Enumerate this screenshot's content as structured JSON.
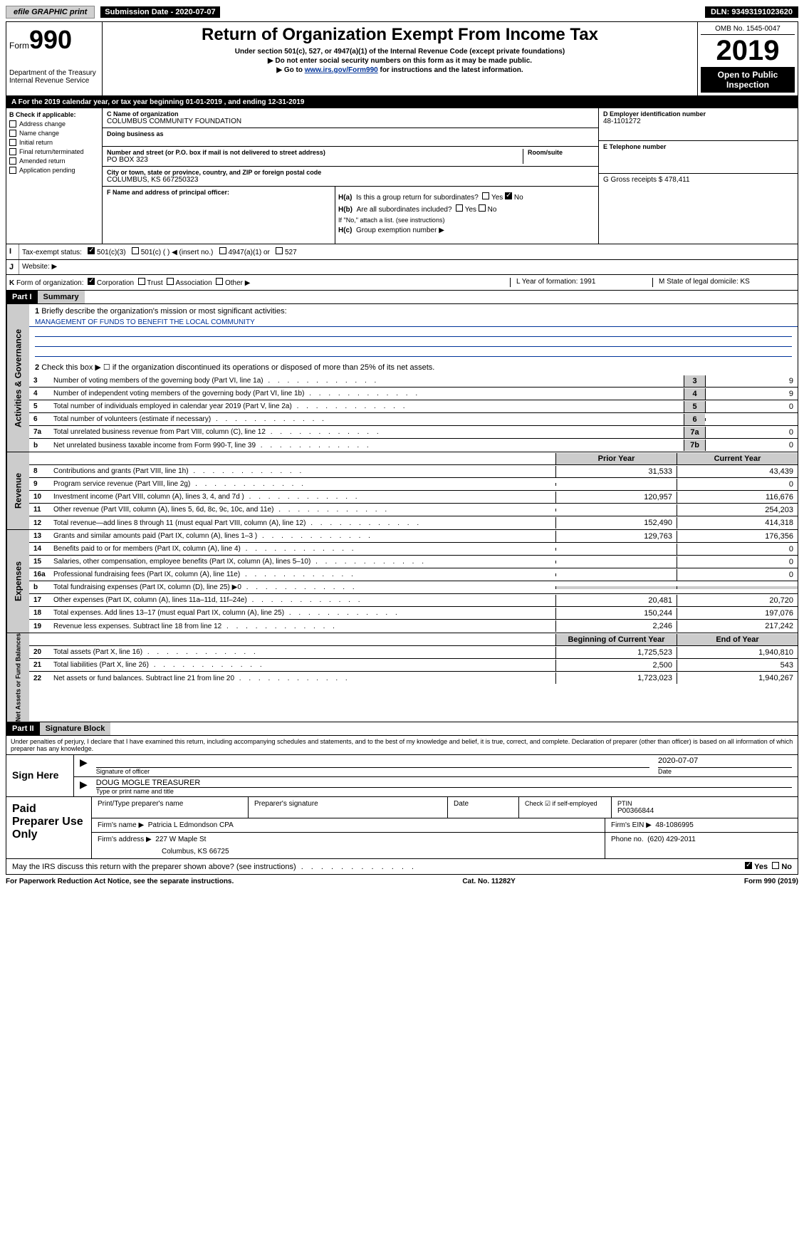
{
  "topbar": {
    "efile": "efile GRAPHIC print",
    "submission_label": "Submission Date - 2020-07-07",
    "dln": "DLN: 93493191023620"
  },
  "header": {
    "form_prefix": "Form",
    "form_number": "990",
    "dept": "Department of the Treasury",
    "irs": "Internal Revenue Service",
    "title": "Return of Organization Exempt From Income Tax",
    "subtitle1": "Under section 501(c), 527, or 4947(a)(1) of the Internal Revenue Code (except private foundations)",
    "subtitle2": "▶ Do not enter social security numbers on this form as it may be made public.",
    "subtitle3_prefix": "▶ Go to ",
    "subtitle3_link": "www.irs.gov/Form990",
    "subtitle3_suffix": " for instructions and the latest information.",
    "omb": "OMB No. 1545-0047",
    "year": "2019",
    "open": "Open to Public Inspection"
  },
  "sectionA": {
    "tax_year": "A   For the 2019 calendar year, or tax year beginning 01-01-2019      , and ending 12-31-2019",
    "b_label": "B Check if applicable:",
    "checks": [
      "Address change",
      "Name change",
      "Initial return",
      "Final return/terminated",
      "Amended return",
      "Application pending"
    ],
    "c_label": "C Name of organization",
    "org_name": "COLUMBUS COMMUNITY FOUNDATION",
    "dba": "Doing business as",
    "street_label": "Number and street (or P.O. box if mail is not delivered to street address)",
    "street": "PO BOX 323",
    "room_label": "Room/suite",
    "city_label": "City or town, state or province, country, and ZIP or foreign postal code",
    "city": "COLUMBUS, KS  667250323",
    "d_label": "D Employer identification number",
    "ein": "48-1101272",
    "e_label": "E Telephone number",
    "g_label": "G Gross receipts $ 478,411",
    "f_label": "F Name and address of principal officer:",
    "ha": "Is this a group return for subordinates?",
    "hb": "Are all subordinates included?",
    "hb_note": "If \"No,\" attach a list. (see instructions)",
    "hc": "Group exemption number ▶",
    "yes": "Yes",
    "no": "No"
  },
  "rowI": {
    "label": "I",
    "text": "Tax-exempt status:",
    "opt1": "501(c)(3)",
    "opt2": "501(c) (   ) ◀ (insert no.)",
    "opt3": "4947(a)(1) or",
    "opt4": "527"
  },
  "rowJ": {
    "label": "J",
    "text": "Website: ▶"
  },
  "rowK": {
    "label": "K",
    "text": "Form of organization:",
    "opts": [
      "Corporation",
      "Trust",
      "Association",
      "Other ▶"
    ],
    "l_label": "L Year of formation: 1991",
    "m_label": "M State of legal domicile: KS"
  },
  "part1": {
    "header": "Part I",
    "title": "Summary",
    "line1": "Briefly describe the organization's mission or most significant activities:",
    "mission": "MANAGEMENT OF FUNDS TO BENEFIT THE LOCAL COMMUNITY",
    "line2": "Check this box ▶ ☐ if the organization discontinued its operations or disposed of more than 25% of its net assets.",
    "governance": "Activities & Governance",
    "revenue": "Revenue",
    "expenses": "Expenses",
    "netassets": "Net Assets or Fund Balances",
    "lines_gov": [
      {
        "n": "3",
        "t": "Number of voting members of the governing body (Part VI, line 1a)",
        "box": "3",
        "v": "9"
      },
      {
        "n": "4",
        "t": "Number of independent voting members of the governing body (Part VI, line 1b)",
        "box": "4",
        "v": "9"
      },
      {
        "n": "5",
        "t": "Total number of individuals employed in calendar year 2019 (Part V, line 2a)",
        "box": "5",
        "v": "0"
      },
      {
        "n": "6",
        "t": "Total number of volunteers (estimate if necessary)",
        "box": "6",
        "v": ""
      },
      {
        "n": "7a",
        "t": "Total unrelated business revenue from Part VIII, column (C), line 12",
        "box": "7a",
        "v": "0"
      },
      {
        "n": "b",
        "t": "Net unrelated business taxable income from Form 990-T, line 39",
        "box": "7b",
        "v": "0"
      }
    ],
    "prior": "Prior Year",
    "current": "Current Year",
    "lines_rev": [
      {
        "n": "8",
        "t": "Contributions and grants (Part VIII, line 1h)",
        "p": "31,533",
        "c": "43,439"
      },
      {
        "n": "9",
        "t": "Program service revenue (Part VIII, line 2g)",
        "p": "",
        "c": "0"
      },
      {
        "n": "10",
        "t": "Investment income (Part VIII, column (A), lines 3, 4, and 7d )",
        "p": "120,957",
        "c": "116,676"
      },
      {
        "n": "11",
        "t": "Other revenue (Part VIII, column (A), lines 5, 6d, 8c, 9c, 10c, and 11e)",
        "p": "",
        "c": "254,203"
      },
      {
        "n": "12",
        "t": "Total revenue—add lines 8 through 11 (must equal Part VIII, column (A), line 12)",
        "p": "152,490",
        "c": "414,318"
      }
    ],
    "lines_exp": [
      {
        "n": "13",
        "t": "Grants and similar amounts paid (Part IX, column (A), lines 1–3 )",
        "p": "129,763",
        "c": "176,356"
      },
      {
        "n": "14",
        "t": "Benefits paid to or for members (Part IX, column (A), line 4)",
        "p": "",
        "c": "0"
      },
      {
        "n": "15",
        "t": "Salaries, other compensation, employee benefits (Part IX, column (A), lines 5–10)",
        "p": "",
        "c": "0"
      },
      {
        "n": "16a",
        "t": "Professional fundraising fees (Part IX, column (A), line 11e)",
        "p": "",
        "c": "0"
      },
      {
        "n": "b",
        "t": "Total fundraising expenses (Part IX, column (D), line 25) ▶0",
        "p": "—",
        "c": "—"
      },
      {
        "n": "17",
        "t": "Other expenses (Part IX, column (A), lines 11a–11d, 11f–24e)",
        "p": "20,481",
        "c": "20,720"
      },
      {
        "n": "18",
        "t": "Total expenses. Add lines 13–17 (must equal Part IX, column (A), line 25)",
        "p": "150,244",
        "c": "197,076"
      },
      {
        "n": "19",
        "t": "Revenue less expenses. Subtract line 18 from line 12",
        "p": "2,246",
        "c": "217,242"
      }
    ],
    "beg": "Beginning of Current Year",
    "end": "End of Year",
    "lines_net": [
      {
        "n": "20",
        "t": "Total assets (Part X, line 16)",
        "p": "1,725,523",
        "c": "1,940,810"
      },
      {
        "n": "21",
        "t": "Total liabilities (Part X, line 26)",
        "p": "2,500",
        "c": "543"
      },
      {
        "n": "22",
        "t": "Net assets or fund balances. Subtract line 21 from line 20",
        "p": "1,723,023",
        "c": "1,940,267"
      }
    ]
  },
  "part2": {
    "header": "Part II",
    "title": "Signature Block",
    "perjury": "Under penalties of perjury, I declare that I have examined this return, including accompanying schedules and statements, and to the best of my knowledge and belief, it is true, correct, and complete. Declaration of preparer (other than officer) is based on all information of which preparer has any knowledge.",
    "sign_here": "Sign Here",
    "sig_officer": "Signature of officer",
    "date": "Date",
    "sig_date": "2020-07-07",
    "name_title": "DOUG MOGLE TREASURER",
    "name_label": "Type or print name and title"
  },
  "paid": {
    "label": "Paid Preparer Use Only",
    "col1": "Print/Type preparer's name",
    "col2": "Preparer's signature",
    "col3": "Date",
    "col4_check": "Check ☑ if self-employed",
    "ptin_label": "PTIN",
    "ptin": "P00366844",
    "firm_name_label": "Firm's name    ▶",
    "firm_name": "Patricia L Edmondson CPA",
    "firm_ein_label": "Firm's EIN ▶",
    "firm_ein": "48-1086995",
    "firm_addr_label": "Firm's address ▶",
    "firm_addr": "227 W Maple St",
    "firm_city": "Columbus, KS  66725",
    "phone_label": "Phone no.",
    "phone": "(620) 429-2011"
  },
  "discuss": {
    "text": "May the IRS discuss this return with the preparer shown above? (see instructions)",
    "yes": "Yes",
    "no": "No"
  },
  "footer": {
    "left": "For Paperwork Reduction Act Notice, see the separate instructions.",
    "mid": "Cat. No. 11282Y",
    "right": "Form 990 (2019)"
  }
}
